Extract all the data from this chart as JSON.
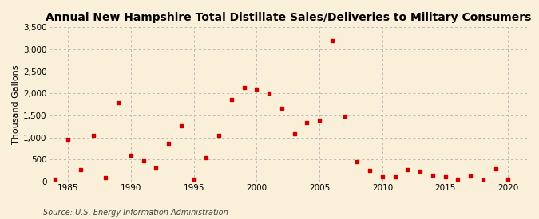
{
  "title": "Annual New Hampshire Total Distillate Sales/Deliveries to Military Consumers",
  "ylabel": "Thousand Gallons",
  "source": "Source: U.S. Energy Information Administration",
  "background_color": "#faefd8",
  "marker_color": "#cc0000",
  "years": [
    1984,
    1985,
    1986,
    1987,
    1988,
    1989,
    1990,
    1991,
    1992,
    1993,
    1994,
    1995,
    1996,
    1997,
    1998,
    1999,
    2000,
    2001,
    2002,
    2003,
    2004,
    2005,
    2006,
    2007,
    2008,
    2009,
    2010,
    2011,
    2012,
    2013,
    2014,
    2015,
    2016,
    2017,
    2018,
    2019,
    2020
  ],
  "values": [
    50,
    950,
    270,
    1050,
    90,
    1780,
    600,
    470,
    300,
    870,
    1270,
    50,
    540,
    1040,
    1860,
    2130,
    2100,
    2000,
    1660,
    1090,
    1340,
    1390,
    3200,
    1480,
    460,
    250,
    110,
    100,
    265,
    240,
    145,
    115,
    50,
    125,
    30,
    280,
    50
  ],
  "xlim": [
    1983.5,
    2021.5
  ],
  "ylim": [
    0,
    3500
  ],
  "yticks": [
    0,
    500,
    1000,
    1500,
    2000,
    2500,
    3000,
    3500
  ],
  "xticks": [
    1985,
    1990,
    1995,
    2000,
    2005,
    2010,
    2015,
    2020
  ],
  "grid_color": "#bbbbbb",
  "title_fontsize": 10,
  "label_fontsize": 8,
  "tick_fontsize": 7.5,
  "source_fontsize": 7
}
